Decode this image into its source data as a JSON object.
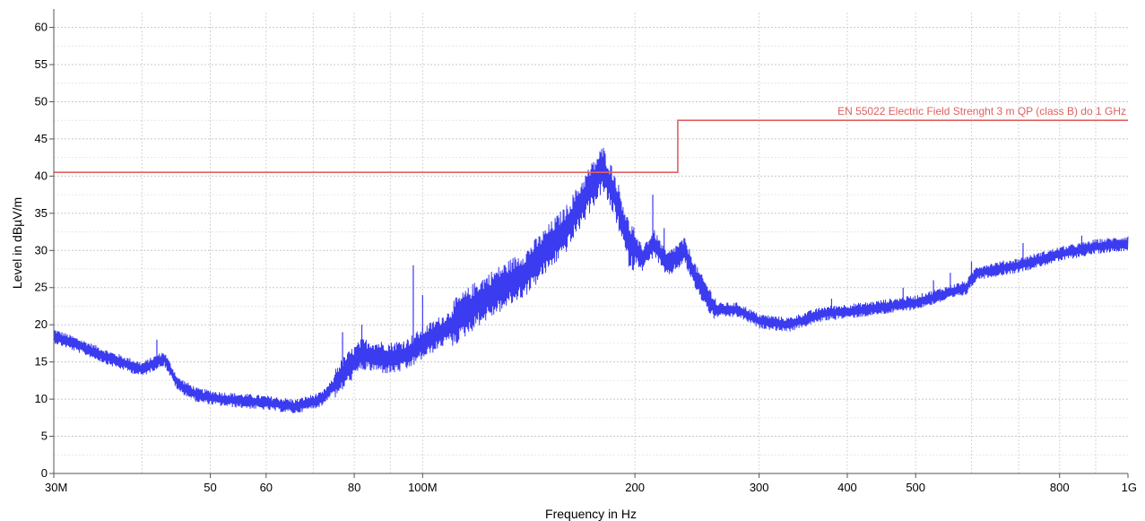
{
  "chart_data": {
    "type": "line",
    "xlabel": "Frequency in Hz",
    "ylabel": "Level in dBµV/m",
    "xscale": "log",
    "xlim": [
      30000000,
      1000000000
    ],
    "ylim": [
      0,
      62
    ],
    "grid": true,
    "x_ticks": [
      {
        "value": 30000000,
        "label": "30M"
      },
      {
        "value": 50000000,
        "label": "50"
      },
      {
        "value": 60000000,
        "label": "60"
      },
      {
        "value": 80000000,
        "label": "80"
      },
      {
        "value": 100000000,
        "label": "100M"
      },
      {
        "value": 200000000,
        "label": "200"
      },
      {
        "value": 300000000,
        "label": "300"
      },
      {
        "value": 400000000,
        "label": "400"
      },
      {
        "value": 500000000,
        "label": "500"
      },
      {
        "value": 800000000,
        "label": "800"
      },
      {
        "value": 1000000000,
        "label": "1G"
      }
    ],
    "y_ticks": [
      0,
      5,
      10,
      15,
      20,
      25,
      30,
      35,
      40,
      45,
      50,
      55,
      60
    ],
    "limit": {
      "name": "EN 55022 Electric Field Strenght 3 m QP (class B) do 1 GHz",
      "color": "#e06060",
      "points": [
        [
          30000000,
          40.5
        ],
        [
          230000000,
          40.5
        ],
        [
          230000000,
          47.5
        ],
        [
          1000000000,
          47.5
        ]
      ]
    },
    "series": [
      {
        "color": "#3b3bf0",
        "points": [
          [
            30000000,
            18.5
          ],
          [
            33000000,
            17
          ],
          [
            36000000,
            15.5
          ],
          [
            40000000,
            14
          ],
          [
            43000000,
            15.5
          ],
          [
            45000000,
            12
          ],
          [
            48000000,
            10.5
          ],
          [
            52000000,
            10
          ],
          [
            60000000,
            9.5
          ],
          [
            66000000,
            9
          ],
          [
            72000000,
            10
          ],
          [
            75000000,
            12
          ],
          [
            78000000,
            14
          ],
          [
            82000000,
            16
          ],
          [
            90000000,
            15.5
          ],
          [
            95000000,
            16
          ],
          [
            100000000,
            17.5
          ],
          [
            110000000,
            20
          ],
          [
            120000000,
            23
          ],
          [
            140000000,
            27
          ],
          [
            160000000,
            33
          ],
          [
            172000000,
            38
          ],
          [
            180000000,
            41
          ],
          [
            188000000,
            37
          ],
          [
            196000000,
            31
          ],
          [
            205000000,
            29
          ],
          [
            213000000,
            31
          ],
          [
            222000000,
            28
          ],
          [
            235000000,
            30
          ],
          [
            245000000,
            26
          ],
          [
            260000000,
            22
          ],
          [
            280000000,
            22
          ],
          [
            300000000,
            20.5
          ],
          [
            330000000,
            20
          ],
          [
            370000000,
            21.5
          ],
          [
            420000000,
            22
          ],
          [
            500000000,
            23
          ],
          [
            590000000,
            25
          ],
          [
            610000000,
            27
          ],
          [
            700000000,
            28
          ],
          [
            800000000,
            29.5
          ],
          [
            900000000,
            30.5
          ],
          [
            1000000000,
            31
          ]
        ],
        "spikes": [
          [
            42000000,
            18
          ],
          [
            77000000,
            19
          ],
          [
            82000000,
            20
          ],
          [
            97000000,
            28
          ],
          [
            100000000,
            24
          ],
          [
            119000000,
            25
          ],
          [
            212000000,
            37.5
          ],
          [
            220000000,
            33
          ],
          [
            380000000,
            23.5
          ],
          [
            480000000,
            25
          ],
          [
            530000000,
            26
          ],
          [
            560000000,
            27
          ],
          [
            600000000,
            28.5
          ],
          [
            710000000,
            31
          ],
          [
            860000000,
            32
          ]
        ]
      }
    ]
  }
}
